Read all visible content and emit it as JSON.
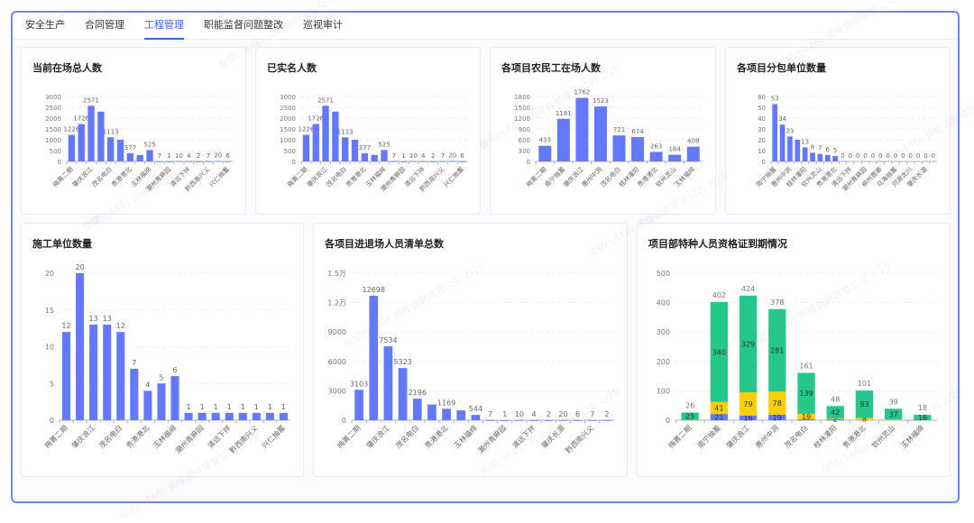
{
  "tabs": [
    {
      "label": "安全生产",
      "active": false
    },
    {
      "label": "合同管理",
      "active": false
    },
    {
      "label": "工程管理",
      "active": true
    },
    {
      "label": "职能监督问题整改",
      "active": false
    },
    {
      "label": "巡视审计",
      "active": false
    }
  ],
  "watermark": "曾斌(5446) 调峰调频建管公司 2/20",
  "colors": {
    "bar": "#6378fa",
    "green": "#25c78a",
    "yellow": "#fcd000",
    "blue": "#6378fa",
    "frame": "#6b86f5",
    "active_tab": "#3c63f0"
  },
  "chart_data": [
    {
      "id": "c1",
      "type": "bar",
      "title": "当前在场总人数",
      "ylim": [
        0,
        3000
      ],
      "yticks": [
        "0",
        "500",
        "1000",
        "1500",
        "2000",
        "2500",
        "3000"
      ],
      "ytick_values": [
        0,
        500,
        1000,
        1500,
        2000,
        2500,
        3000
      ],
      "categories": [
        "梅菁二期",
        "",
        "肇庆浪江",
        "",
        "茂名电白",
        "",
        "贵港港北",
        "",
        "玉林福绵",
        "",
        "潮州青麻园",
        "",
        "清远下拌",
        "",
        "黔西南兴义",
        "",
        "兴仁抽蓄"
      ],
      "values": [
        1226,
        1726,
        2571,
        2300,
        1113,
        1000,
        377,
        300,
        525,
        7,
        1,
        10,
        4,
        2,
        7,
        20,
        6
      ],
      "labels": [
        "1226",
        "1726",
        "2571",
        "",
        "1113",
        "",
        "377",
        "",
        "525",
        "7",
        "1",
        "10",
        "4",
        "2",
        "7",
        "20",
        "6"
      ]
    },
    {
      "id": "c2",
      "type": "bar",
      "title": "已实名人数",
      "ylim": [
        0,
        3000
      ],
      "yticks": [
        "0",
        "500",
        "1000",
        "1500",
        "2000",
        "2500",
        "3000"
      ],
      "ytick_values": [
        0,
        500,
        1000,
        1500,
        2000,
        2500,
        3000
      ],
      "categories": [
        "梅菁二期",
        "",
        "肇庆浪江",
        "",
        "茂名电白",
        "",
        "贵港港北",
        "",
        "玉林福绵",
        "",
        "潮州青麻园",
        "",
        "清远下拌",
        "",
        "黔西南兴义",
        "",
        "兴仁抽蓄"
      ],
      "values": [
        1226,
        1726,
        2571,
        2300,
        1113,
        1000,
        377,
        300,
        525,
        7,
        1,
        10,
        4,
        2,
        7,
        20,
        6
      ],
      "labels": [
        "1226",
        "1726",
        "2571",
        "",
        "1113",
        "",
        "377",
        "",
        "525",
        "7",
        "1",
        "10",
        "4",
        "2",
        "7",
        "20",
        "6"
      ]
    },
    {
      "id": "c3",
      "type": "bar",
      "title": "各项目农民工在场人数",
      "ylim": [
        0,
        1800
      ],
      "yticks": [
        "0",
        "300",
        "600",
        "900",
        "1200",
        "1500",
        "1800"
      ],
      "ytick_values": [
        0,
        300,
        600,
        900,
        1200,
        1500,
        1800
      ],
      "categories": [
        "梅菁二期",
        "南宁抽蓄",
        "肇庆浪江",
        "惠州中洞",
        "茂名电白",
        "桂林灌阳",
        "贵港港北",
        "钦州灵山",
        "玉林福绵"
      ],
      "values": [
        433,
        1181,
        1762,
        1523,
        721,
        674,
        263,
        184,
        408
      ],
      "labels": [
        "433",
        "1181",
        "1762",
        "1523",
        "721",
        "674",
        "263",
        "184",
        "408"
      ]
    },
    {
      "id": "c4",
      "type": "bar",
      "title": "各项目分包单位数量",
      "ylim": [
        0,
        60
      ],
      "yticks": [
        "0",
        "10",
        "20",
        "30",
        "40",
        "50",
        "60"
      ],
      "ytick_values": [
        0,
        10,
        20,
        30,
        40,
        50,
        60
      ],
      "categories": [
        "南宁抽蓄",
        "",
        "惠州中洞",
        "",
        "桂林灌阳",
        "",
        "钦州灵山",
        "",
        "贵港港北",
        "",
        "清远下拌",
        "",
        "潮州青麻园",
        "",
        "柳州鹿寨",
        "",
        "乌海抽蓄",
        "",
        "河源龙川",
        "",
        "肇庆长湄",
        ""
      ],
      "values": [
        53,
        34,
        23,
        20,
        13,
        8,
        7,
        6,
        5,
        0,
        0,
        0,
        0,
        0,
        0,
        0,
        0,
        0,
        0,
        0,
        0,
        0
      ],
      "labels": [
        "53",
        "34",
        "23",
        "",
        "13",
        "8",
        "7",
        "6",
        "5",
        "0",
        "0",
        "0",
        "0",
        "0",
        "0",
        "0",
        "0",
        "0",
        "0",
        "0",
        "0",
        "0"
      ]
    },
    {
      "id": "c5",
      "type": "bar",
      "title": "施工单位数量",
      "ylim": [
        0,
        20
      ],
      "yticks": [
        "0",
        "5",
        "10",
        "15",
        "20"
      ],
      "ytick_values": [
        0,
        5,
        10,
        15,
        20
      ],
      "categories": [
        "梅菁二期",
        "",
        "肇庆浪江",
        "",
        "茂名电白",
        "",
        "贵港港北",
        "",
        "玉林福绵",
        "",
        "潮州青麻园",
        "",
        "清远下拌",
        "",
        "黔西南兴义",
        "",
        "兴仁抽蓄"
      ],
      "values": [
        12,
        20,
        13,
        13,
        12,
        7,
        4,
        5,
        6,
        1,
        1,
        1,
        1,
        1,
        1,
        1,
        1
      ],
      "labels": [
        "12",
        "20",
        "13",
        "13",
        "12",
        "7",
        "4",
        "5",
        "6",
        "1",
        "1",
        "1",
        "1",
        "1",
        "1",
        "1",
        "1"
      ]
    },
    {
      "id": "c6",
      "type": "bar",
      "title": "各项目进退场人员清单总数",
      "ylim": [
        0,
        15000
      ],
      "yticks": [
        "0",
        "3000",
        "6000",
        "9000",
        "1.2万",
        "1.5万"
      ],
      "ytick_values": [
        0,
        3000,
        6000,
        9000,
        12000,
        15000
      ],
      "categories": [
        "梅菁二期",
        "",
        "肇庆浪江",
        "",
        "茂名电白",
        "",
        "贵港港北",
        "",
        "玉林福绵",
        "",
        "潮州青麻园",
        "",
        "清远下拌",
        "",
        "肇庆长湄",
        "",
        "黔西南兴义",
        ""
      ],
      "values": [
        3103,
        12698,
        7534,
        5323,
        2196,
        1600,
        1169,
        1000,
        544,
        7,
        1,
        10,
        4,
        2,
        20,
        6,
        7,
        2
      ],
      "labels": [
        "3103",
        "12698",
        "7534",
        "5323",
        "2196",
        "",
        "1169",
        "",
        "544",
        "7",
        "1",
        "10",
        "4",
        "2",
        "20",
        "6",
        "7",
        "2"
      ]
    },
    {
      "id": "c7",
      "type": "stacked-bar",
      "title": "项目部特种人员资格证到期情况",
      "ylim": [
        0,
        500
      ],
      "yticks": [
        "0",
        "100",
        "200",
        "300",
        "400",
        "500"
      ],
      "ytick_values": [
        0,
        100,
        200,
        300,
        400,
        500
      ],
      "categories": [
        "梅菁二期",
        "南宁抽蓄",
        "肇庆浪江",
        "惠州中洞",
        "茂名电白",
        "桂林灌阳",
        "贵港港北",
        "钦州灵山",
        "玉林福绵"
      ],
      "series": [
        {
          "color": "#6378fa",
          "values": [
            0,
            21,
            16,
            19,
            3,
            4,
            0,
            0,
            0
          ],
          "labels": [
            "",
            "21",
            "16",
            "19",
            "",
            "",
            "",
            "",
            ""
          ]
        },
        {
          "color": "#fcd000",
          "values": [
            1,
            41,
            79,
            78,
            19,
            2,
            8,
            2,
            0
          ],
          "labels": [
            "",
            "41",
            "79",
            "78",
            "19",
            "2",
            "8",
            "",
            ""
          ]
        },
        {
          "color": "#25c78a",
          "values": [
            25,
            340,
            329,
            281,
            139,
            42,
            93,
            37,
            18
          ],
          "labels": [
            "25",
            "340",
            "329",
            "281",
            "139",
            "42",
            "93",
            "37",
            "18"
          ]
        }
      ],
      "totals": [
        "26",
        "402",
        "424",
        "378",
        "161",
        "48",
        "101",
        "39",
        "18"
      ]
    }
  ]
}
